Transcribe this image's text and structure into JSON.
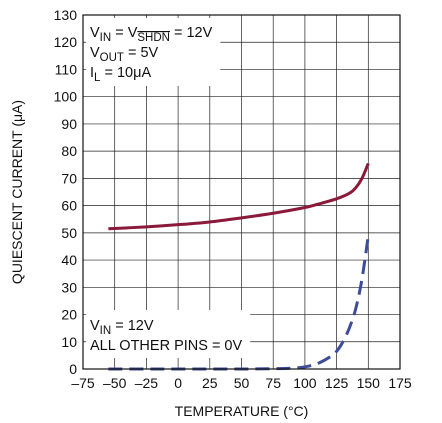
{
  "chart_data": {
    "type": "line",
    "xlabel": "TEMPERATURE (°C)",
    "ylabel": "QUIESCENT CURRENT (μA)",
    "xlim": [
      -75,
      175
    ],
    "ylim": [
      0,
      130
    ],
    "x_ticks": [
      -75,
      -50,
      -25,
      0,
      25,
      50,
      75,
      100,
      125,
      150,
      175
    ],
    "x_tick_labels": [
      "–75",
      "–50",
      "–25",
      "0",
      "25",
      "50",
      "75",
      "100",
      "125",
      "150",
      "175"
    ],
    "y_ticks": [
      0,
      10,
      20,
      30,
      40,
      50,
      60,
      70,
      80,
      90,
      100,
      110,
      120,
      130
    ],
    "y_tick_labels": [
      "0",
      "10",
      "20",
      "30",
      "40",
      "50",
      "60",
      "70",
      "80",
      "90",
      "100",
      "110",
      "120",
      "130"
    ],
    "grid": true,
    "series": [
      {
        "color": "#8b1a3a",
        "dash": "solid",
        "x": [
          -55,
          -25,
          0,
          25,
          50,
          75,
          100,
          110,
          125,
          135,
          140,
          145,
          150
        ],
        "y": [
          51.5,
          52.2,
          53,
          54,
          55.5,
          57.2,
          59.3,
          60.5,
          62.5,
          64.5,
          66.5,
          70,
          75.5
        ]
      },
      {
        "color": "#3d4d9a",
        "dash": "dashed",
        "x": [
          -55,
          -25,
          0,
          25,
          50,
          75,
          90,
          100,
          110,
          120,
          125,
          130,
          135,
          140,
          145,
          150
        ],
        "y": [
          0,
          0,
          0,
          0,
          0,
          0.1,
          0.3,
          0.8,
          2,
          4.5,
          6.5,
          10,
          15,
          22,
          33,
          49
        ]
      }
    ],
    "annotations": [
      {
        "lines": [
          [
            {
              "t": "V"
            },
            {
              "t": "IN",
              "sub": true
            },
            {
              "t": " = V"
            },
            {
              "t": "SHDN",
              "sub": true,
              "over": true
            },
            {
              "t": " = 12V"
            }
          ],
          [
            {
              "t": "V"
            },
            {
              "t": "OUT",
              "sub": true
            },
            {
              "t": " = 5V"
            }
          ],
          [
            {
              "t": "I"
            },
            {
              "t": "L",
              "sub": true
            },
            {
              "t": " = 10μA"
            }
          ]
        ]
      },
      {
        "lines": [
          [
            {
              "t": "V"
            },
            {
              "t": "IN",
              "sub": true
            },
            {
              "t": " = 12V"
            }
          ],
          [
            {
              "t": "ALL OTHER PINS = 0V"
            }
          ]
        ]
      }
    ]
  }
}
